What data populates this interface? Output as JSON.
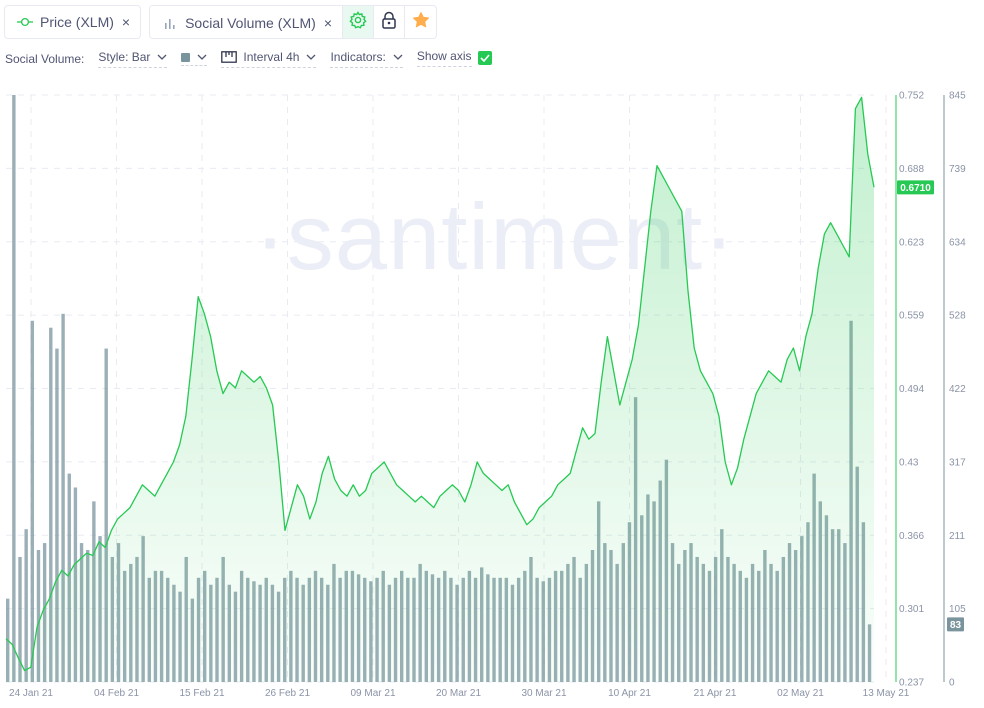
{
  "pills": {
    "price": {
      "label": "Price (XLM)",
      "close": "×"
    },
    "social": {
      "label": "Social Volume (XLM)",
      "close": "×"
    }
  },
  "settings": {
    "label": "Social Volume:",
    "style": "Style: Bar",
    "interval": "Interval 4h",
    "indicators": "Indicators:",
    "show_axis": "Show axis"
  },
  "colors": {
    "price": "#26c953",
    "volume": "#7a949e",
    "accent": "#26c953"
  },
  "watermark": "·santiment·",
  "chart_data": {
    "type": "line",
    "x_ticks": [
      "24 Jan 21",
      "04 Feb 21",
      "15 Feb 21",
      "26 Feb 21",
      "09 Mar 21",
      "20 Mar 21",
      "30 Mar 21",
      "10 Apr 21",
      "21 Apr 21",
      "02 May 21",
      "13 May 21"
    ],
    "price_axis": {
      "ticks": [
        "0.752",
        "0.688",
        "0.623",
        "0.559",
        "0.494",
        "0.43",
        "0.366",
        "0.301",
        "0.237"
      ],
      "range": [
        0.237,
        0.752
      ],
      "current": "0.6710"
    },
    "volume_axis": {
      "ticks": [
        "845",
        "739",
        "634",
        "528",
        "422",
        "317",
        "211",
        "105",
        "0"
      ],
      "range": [
        0,
        845
      ],
      "current": "83"
    },
    "series": [
      {
        "name": "Price (XLM)",
        "values": [
          0.275,
          0.27,
          0.258,
          0.247,
          0.25,
          0.285,
          0.3,
          0.31,
          0.325,
          0.335,
          0.33,
          0.34,
          0.345,
          0.35,
          0.348,
          0.36,
          0.355,
          0.37,
          0.38,
          0.385,
          0.39,
          0.4,
          0.41,
          0.405,
          0.4,
          0.41,
          0.42,
          0.43,
          0.445,
          0.47,
          0.52,
          0.575,
          0.56,
          0.54,
          0.51,
          0.49,
          0.5,
          0.495,
          0.51,
          0.505,
          0.5,
          0.505,
          0.495,
          0.48,
          0.43,
          0.37,
          0.39,
          0.41,
          0.4,
          0.38,
          0.395,
          0.42,
          0.435,
          0.415,
          0.405,
          0.4,
          0.41,
          0.4,
          0.405,
          0.42,
          0.425,
          0.43,
          0.42,
          0.41,
          0.405,
          0.4,
          0.395,
          0.4,
          0.395,
          0.39,
          0.4,
          0.405,
          0.41,
          0.405,
          0.395,
          0.41,
          0.43,
          0.42,
          0.415,
          0.41,
          0.405,
          0.41,
          0.395,
          0.385,
          0.375,
          0.38,
          0.39,
          0.395,
          0.4,
          0.41,
          0.415,
          0.42,
          0.44,
          0.46,
          0.45,
          0.455,
          0.5,
          0.54,
          0.51,
          0.48,
          0.5,
          0.52,
          0.55,
          0.6,
          0.65,
          0.69,
          0.68,
          0.67,
          0.66,
          0.65,
          0.58,
          0.53,
          0.51,
          0.5,
          0.49,
          0.47,
          0.43,
          0.41,
          0.425,
          0.45,
          0.47,
          0.49,
          0.5,
          0.51,
          0.505,
          0.5,
          0.52,
          0.53,
          0.51,
          0.54,
          0.56,
          0.6,
          0.63,
          0.64,
          0.63,
          0.62,
          0.61,
          0.74,
          0.75,
          0.7,
          0.671
        ],
        "unit": "USD"
      },
      {
        "name": "Social Volume (XLM)",
        "values": [
          120,
          845,
          180,
          220,
          520,
          190,
          200,
          510,
          480,
          530,
          300,
          280,
          200,
          190,
          260,
          210,
          480,
          180,
          200,
          160,
          170,
          180,
          210,
          150,
          160,
          160,
          150,
          140,
          130,
          180,
          120,
          150,
          160,
          140,
          150,
          180,
          140,
          130,
          160,
          150,
          145,
          140,
          150,
          140,
          130,
          150,
          160,
          150,
          140,
          150,
          160,
          150,
          140,
          170,
          150,
          160,
          160,
          155,
          150,
          145,
          150,
          160,
          140,
          150,
          160,
          150,
          150,
          170,
          160,
          155,
          150,
          160,
          150,
          140,
          150,
          160,
          150,
          165,
          155,
          150,
          150,
          150,
          140,
          150,
          160,
          180,
          150,
          145,
          150,
          160,
          160,
          170,
          180,
          150,
          170,
          190,
          260,
          200,
          190,
          170,
          200,
          230,
          410,
          240,
          270,
          260,
          290,
          320,
          200,
          170,
          190,
          200,
          180,
          170,
          160,
          180,
          220,
          180,
          170,
          160,
          150,
          170,
          160,
          190,
          170,
          160,
          180,
          200,
          190,
          210,
          230,
          300,
          260,
          240,
          220,
          220,
          200,
          520,
          310,
          230,
          83
        ]
      }
    ]
  }
}
